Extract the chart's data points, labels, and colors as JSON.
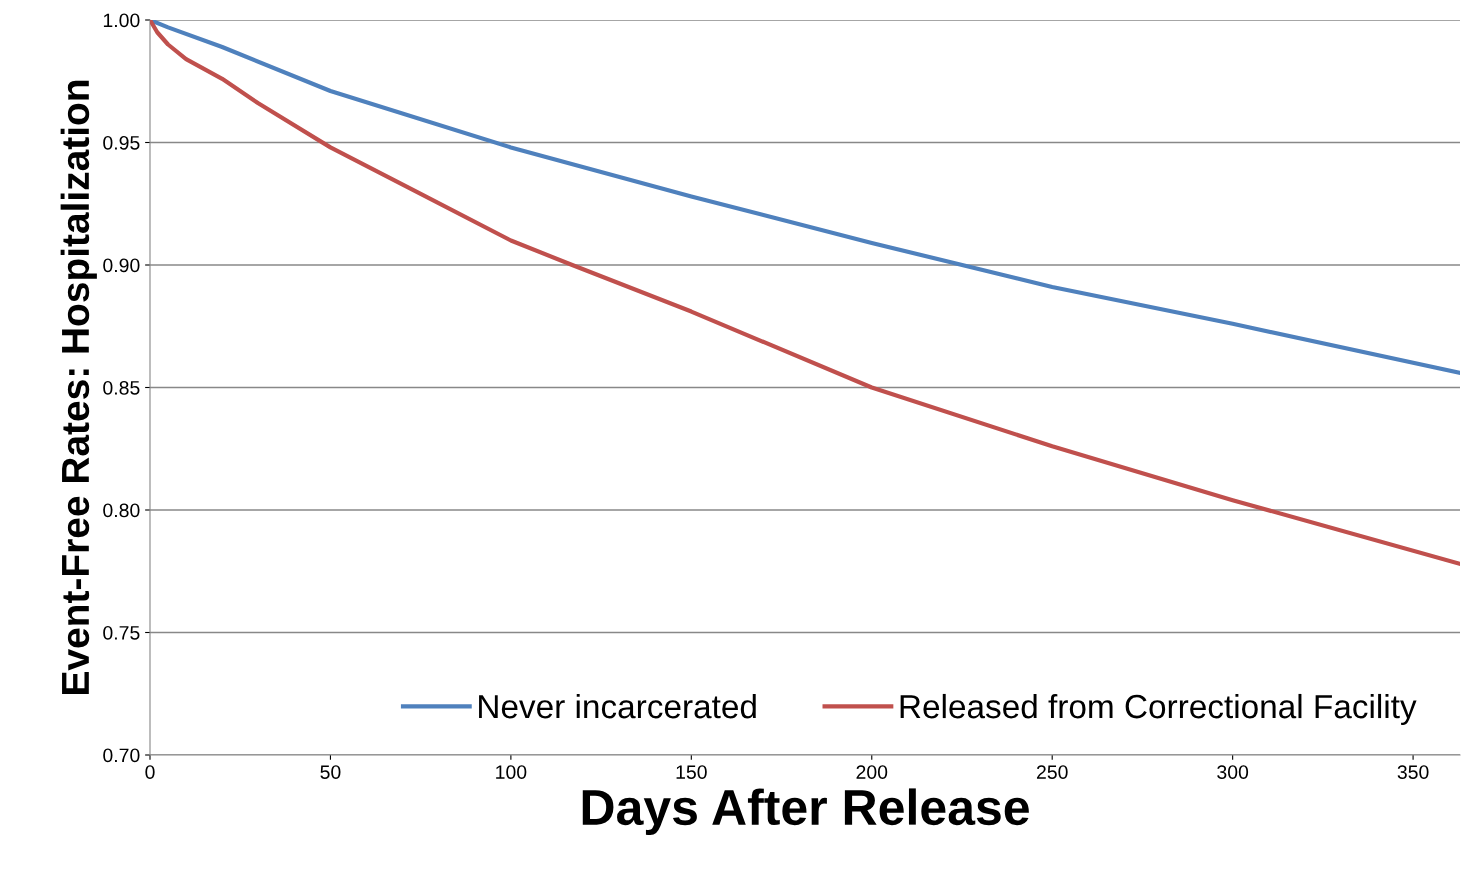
{
  "chart_data": {
    "type": "line",
    "xlabel": "Days After Release",
    "ylabel": "Event-Free Rates: Hospitalization",
    "xlim": [
      0,
      363
    ],
    "xticks": [
      0,
      50,
      100,
      150,
      200,
      250,
      300,
      350
    ],
    "ylim": [
      0.7,
      1.0
    ],
    "yticks": [
      {
        "value": 0.7,
        "label": "0.70"
      },
      {
        "value": 0.75,
        "label": "0.75"
      },
      {
        "value": 0.8,
        "label": "0.80"
      },
      {
        "value": 0.85,
        "label": "0.85"
      },
      {
        "value": 0.9,
        "label": "0.90"
      },
      {
        "value": 0.95,
        "label": "0.95"
      },
      {
        "value": 1.0,
        "label": "1.00"
      }
    ],
    "grid": "y",
    "legend": "bottom",
    "marker": "none",
    "line_style": "solid",
    "series": [
      {
        "name": "Never incarcerated",
        "color": "#4f81bd",
        "x": [
          0,
          5,
          20,
          50,
          100,
          150,
          200,
          250,
          300,
          363
        ],
        "values": [
          1.0,
          0.997,
          0.989,
          0.971,
          0.948,
          0.928,
          0.909,
          0.891,
          0.876,
          0.856
        ]
      },
      {
        "name": "Released from Correctional Facility",
        "color": "#c0504d",
        "x": [
          0,
          2,
          5,
          10,
          20,
          30,
          50,
          75,
          100,
          117,
          150,
          200,
          250,
          300,
          363
        ],
        "values": [
          1.0,
          0.995,
          0.99,
          0.984,
          0.976,
          0.966,
          0.948,
          0.929,
          0.91,
          0.9,
          0.881,
          0.85,
          0.826,
          0.804,
          0.778
        ]
      }
    ]
  }
}
